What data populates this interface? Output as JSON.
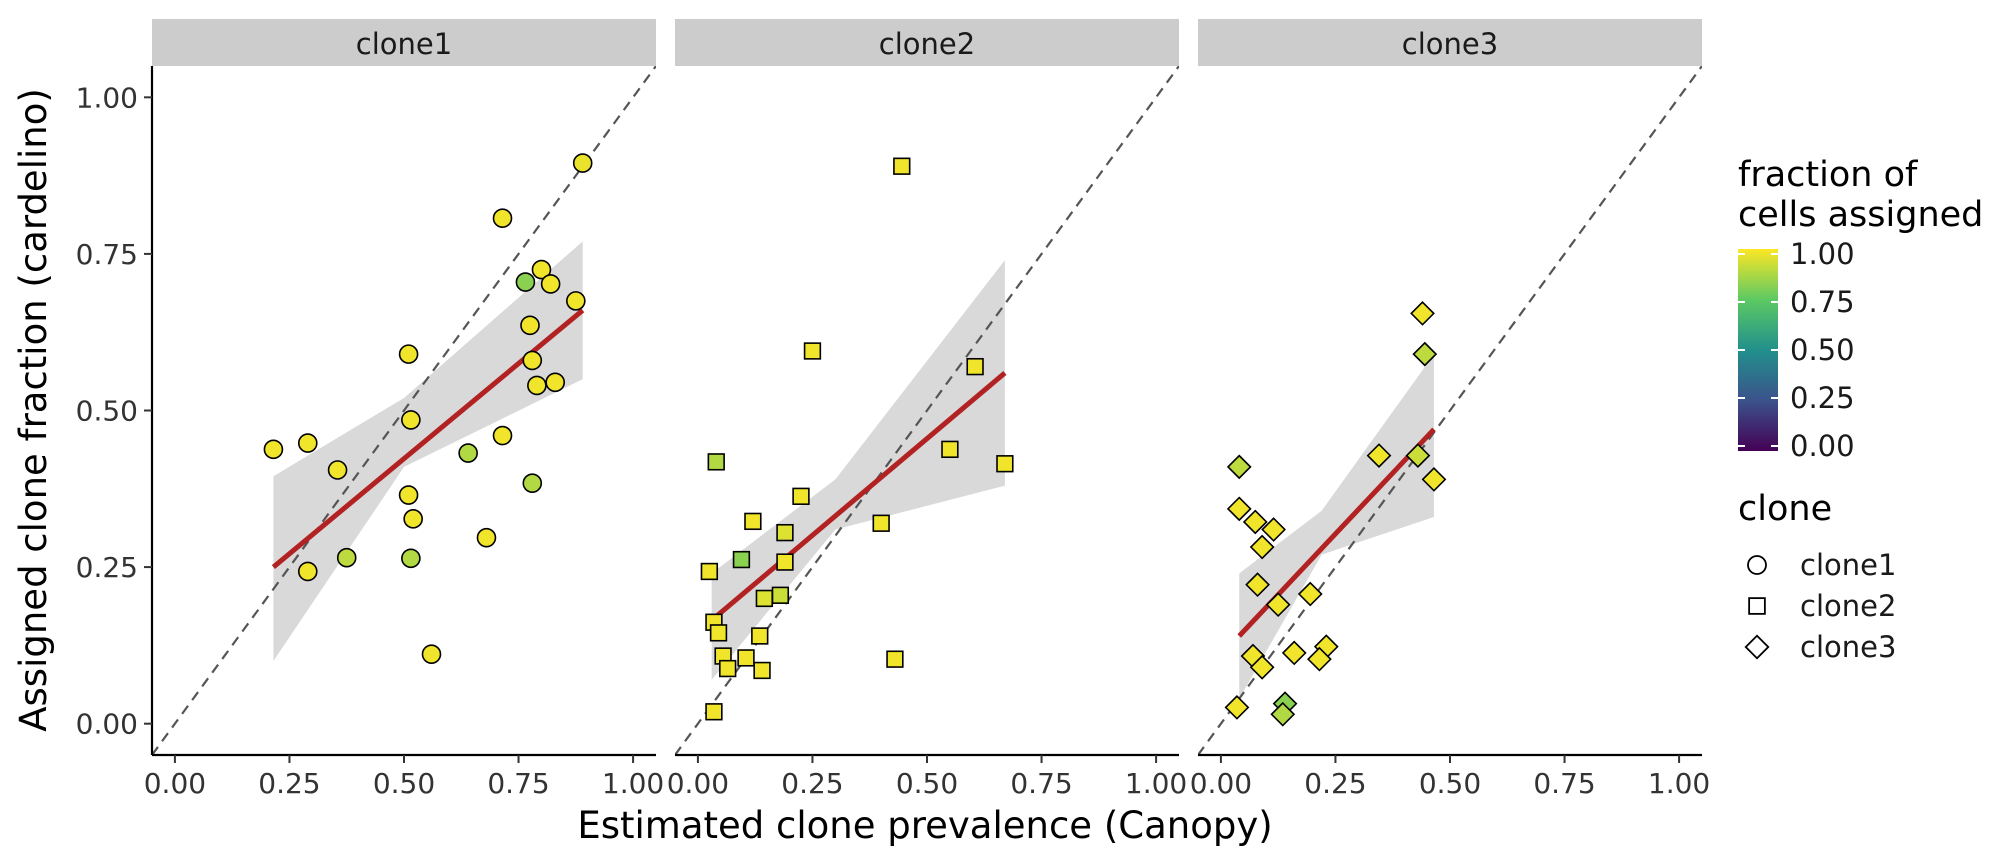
{
  "chart_data": {
    "type": "scatter",
    "xlabel": "Estimated clone prevalence (Canopy)",
    "ylabel": "Assigned clone fraction (cardelino)",
    "xlim": [
      -0.05,
      1.05
    ],
    "ylim": [
      -0.05,
      1.05
    ],
    "x_ticks": [
      "0.00",
      "0.25",
      "0.50",
      "0.75",
      "1.00"
    ],
    "y_ticks": [
      "0.00",
      "0.25",
      "0.50",
      "0.75",
      "1.00"
    ],
    "reference_line": "y = x (dashed)",
    "facets": [
      {
        "name": "clone1",
        "shape": "circle",
        "fit": {
          "x": [
            0.215,
            0.89
          ],
          "y": [
            0.25,
            0.66
          ],
          "band": [
            [
              0.215,
              0.1,
              0.395
            ],
            [
              0.5,
              0.41,
              0.52
            ],
            [
              0.89,
              0.55,
              0.77
            ]
          ]
        },
        "points": [
          {
            "x": 0.89,
            "y": 0.895,
            "f": 0.97
          },
          {
            "x": 0.715,
            "y": 0.807,
            "f": 0.98
          },
          {
            "x": 0.765,
            "y": 0.705,
            "f": 0.82
          },
          {
            "x": 0.8,
            "y": 0.725,
            "f": 0.98
          },
          {
            "x": 0.82,
            "y": 0.702,
            "f": 0.98
          },
          {
            "x": 0.875,
            "y": 0.675,
            "f": 0.98
          },
          {
            "x": 0.775,
            "y": 0.636,
            "f": 0.98
          },
          {
            "x": 0.51,
            "y": 0.59,
            "f": 0.98
          },
          {
            "x": 0.78,
            "y": 0.58,
            "f": 0.98
          },
          {
            "x": 0.79,
            "y": 0.54,
            "f": 0.98
          },
          {
            "x": 0.83,
            "y": 0.545,
            "f": 0.98
          },
          {
            "x": 0.515,
            "y": 0.485,
            "f": 0.98
          },
          {
            "x": 0.715,
            "y": 0.46,
            "f": 0.98
          },
          {
            "x": 0.64,
            "y": 0.432,
            "f": 0.88
          },
          {
            "x": 0.215,
            "y": 0.438,
            "f": 0.98
          },
          {
            "x": 0.29,
            "y": 0.448,
            "f": 0.98
          },
          {
            "x": 0.355,
            "y": 0.405,
            "f": 0.98
          },
          {
            "x": 0.78,
            "y": 0.384,
            "f": 0.88
          },
          {
            "x": 0.51,
            "y": 0.365,
            "f": 0.98
          },
          {
            "x": 0.52,
            "y": 0.327,
            "f": 0.98
          },
          {
            "x": 0.68,
            "y": 0.297,
            "f": 0.98
          },
          {
            "x": 0.375,
            "y": 0.265,
            "f": 0.9
          },
          {
            "x": 0.515,
            "y": 0.264,
            "f": 0.88
          },
          {
            "x": 0.29,
            "y": 0.243,
            "f": 0.98
          },
          {
            "x": 0.56,
            "y": 0.111,
            "f": 0.98
          }
        ]
      },
      {
        "name": "clone2",
        "shape": "square",
        "fit": {
          "x": [
            0.03,
            0.67
          ],
          "y": [
            0.165,
            0.56
          ],
          "band": [
            [
              0.03,
              0.07,
              0.24
            ],
            [
              0.3,
              0.31,
              0.39
            ],
            [
              0.67,
              0.38,
              0.74
            ]
          ]
        },
        "points": [
          {
            "x": 0.445,
            "y": 0.89,
            "f": 0.98
          },
          {
            "x": 0.25,
            "y": 0.595,
            "f": 0.98
          },
          {
            "x": 0.605,
            "y": 0.57,
            "f": 0.98
          },
          {
            "x": 0.55,
            "y": 0.438,
            "f": 0.98
          },
          {
            "x": 0.67,
            "y": 0.415,
            "f": 0.98
          },
          {
            "x": 0.04,
            "y": 0.418,
            "f": 0.88
          },
          {
            "x": 0.225,
            "y": 0.363,
            "f": 0.98
          },
          {
            "x": 0.12,
            "y": 0.323,
            "f": 0.98
          },
          {
            "x": 0.4,
            "y": 0.32,
            "f": 0.98
          },
          {
            "x": 0.19,
            "y": 0.305,
            "f": 0.95
          },
          {
            "x": 0.095,
            "y": 0.262,
            "f": 0.82
          },
          {
            "x": 0.19,
            "y": 0.258,
            "f": 0.98
          },
          {
            "x": 0.025,
            "y": 0.243,
            "f": 0.98
          },
          {
            "x": 0.18,
            "y": 0.205,
            "f": 0.92
          },
          {
            "x": 0.145,
            "y": 0.2,
            "f": 0.95
          },
          {
            "x": 0.035,
            "y": 0.162,
            "f": 0.98
          },
          {
            "x": 0.045,
            "y": 0.145,
            "f": 0.98
          },
          {
            "x": 0.135,
            "y": 0.14,
            "f": 0.98
          },
          {
            "x": 0.055,
            "y": 0.108,
            "f": 0.98
          },
          {
            "x": 0.105,
            "y": 0.105,
            "f": 0.98
          },
          {
            "x": 0.43,
            "y": 0.103,
            "f": 0.98
          },
          {
            "x": 0.065,
            "y": 0.088,
            "f": 0.98
          },
          {
            "x": 0.14,
            "y": 0.085,
            "f": 0.98
          },
          {
            "x": 0.035,
            "y": 0.019,
            "f": 0.98
          }
        ]
      },
      {
        "name": "clone3",
        "shape": "diamond",
        "fit": {
          "x": [
            0.04,
            0.465
          ],
          "y": [
            0.14,
            0.47
          ],
          "band": [
            [
              0.04,
              0.04,
              0.24
            ],
            [
              0.22,
              0.27,
              0.34
            ],
            [
              0.465,
              0.33,
              0.59
            ]
          ]
        },
        "points": [
          {
            "x": 0.44,
            "y": 0.655,
            "f": 0.98
          },
          {
            "x": 0.445,
            "y": 0.59,
            "f": 0.9
          },
          {
            "x": 0.345,
            "y": 0.428,
            "f": 0.98
          },
          {
            "x": 0.43,
            "y": 0.428,
            "f": 0.92
          },
          {
            "x": 0.465,
            "y": 0.39,
            "f": 0.98
          },
          {
            "x": 0.04,
            "y": 0.41,
            "f": 0.9
          },
          {
            "x": 0.04,
            "y": 0.343,
            "f": 0.98
          },
          {
            "x": 0.075,
            "y": 0.322,
            "f": 0.98
          },
          {
            "x": 0.115,
            "y": 0.31,
            "f": 0.98
          },
          {
            "x": 0.09,
            "y": 0.282,
            "f": 0.98
          },
          {
            "x": 0.08,
            "y": 0.222,
            "f": 0.98
          },
          {
            "x": 0.195,
            "y": 0.207,
            "f": 0.98
          },
          {
            "x": 0.125,
            "y": 0.19,
            "f": 0.98
          },
          {
            "x": 0.23,
            "y": 0.123,
            "f": 0.98
          },
          {
            "x": 0.16,
            "y": 0.113,
            "f": 0.98
          },
          {
            "x": 0.07,
            "y": 0.108,
            "f": 0.98
          },
          {
            "x": 0.215,
            "y": 0.103,
            "f": 0.98
          },
          {
            "x": 0.09,
            "y": 0.09,
            "f": 0.98
          },
          {
            "x": 0.14,
            "y": 0.032,
            "f": 0.82
          },
          {
            "x": 0.035,
            "y": 0.026,
            "f": 0.98
          },
          {
            "x": 0.135,
            "y": 0.015,
            "f": 0.88
          }
        ]
      }
    ],
    "legend": {
      "colorbar_title_lines": [
        "fraction of",
        "cells assigned"
      ],
      "colorbar_ticks": [
        "1.00",
        "0.75",
        "0.50",
        "0.25",
        "0.00"
      ],
      "shape_title": "clone",
      "shape_entries": [
        {
          "label": "clone1",
          "shape": "circle"
        },
        {
          "label": "clone2",
          "shape": "square"
        },
        {
          "label": "clone3",
          "shape": "diamond"
        }
      ],
      "placement": "right"
    },
    "colors": {
      "fit_line": "#b22222",
      "band": "#d9d9d9",
      "strip": "#cccccc",
      "reference_line": "#555555",
      "viridis": [
        "#440154",
        "#3b528b",
        "#21908c",
        "#5dc963",
        "#fde725"
      ]
    }
  }
}
